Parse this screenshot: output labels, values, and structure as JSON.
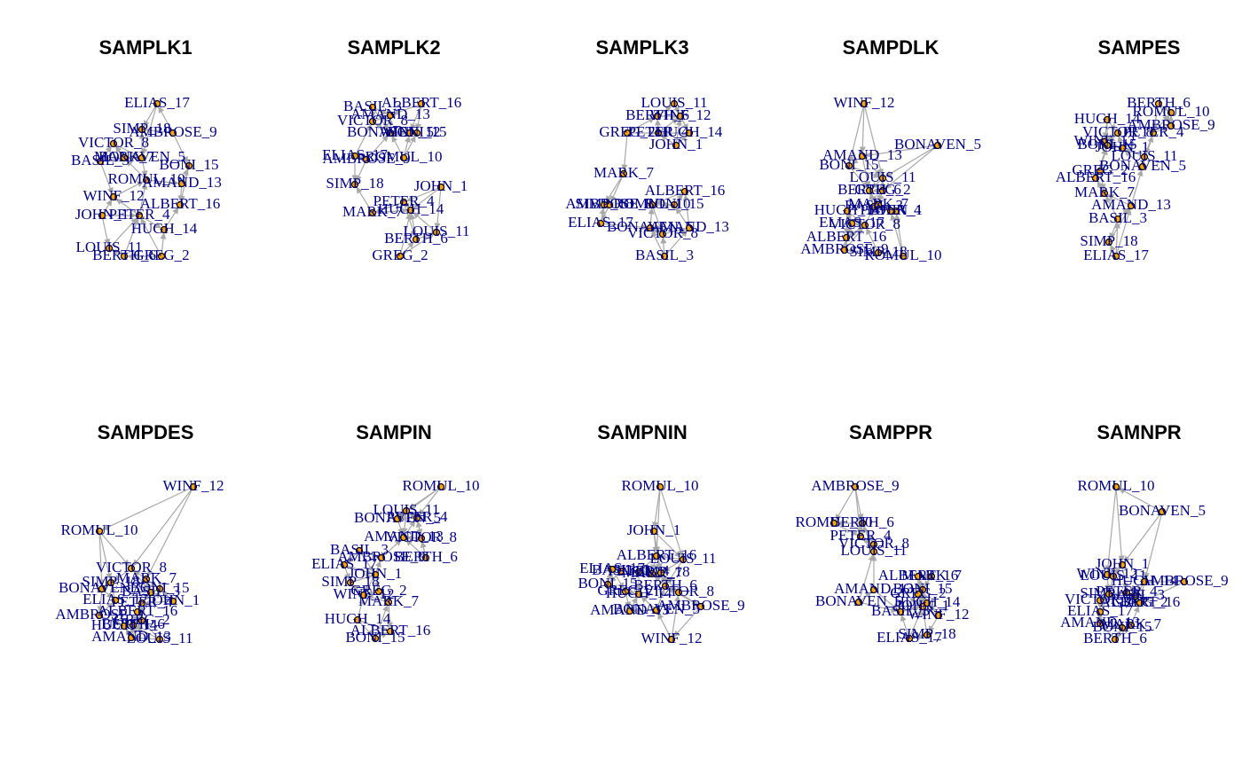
{
  "panels": [
    {
      "title": "SAMPLK1",
      "nodes": [
        "JOHN_1",
        "GREG_2",
        "BASIL_3",
        "PETER_4",
        "BONAVEN_5",
        "BERTH_6",
        "MARK_7",
        "VICTOR_8",
        "AMBROSE_9",
        "ROMUL_10",
        "LOUIS_11",
        "WINF_12",
        "AMAND_13",
        "HUGH_14",
        "BONI_15",
        "ALBERT_16",
        "ELIAS_17",
        "SIMP_18"
      ]
    },
    {
      "title": "SAMPLK2",
      "nodes": [
        "JOHN_1",
        "GREG_2",
        "BASIL_3",
        "PETER_4",
        "BONAVEN_5",
        "BERTH_6",
        "MARK_7",
        "VICTOR_8",
        "AMBROSE_9",
        "ROMUL_10",
        "LOUIS_11",
        "WINF_12",
        "AMAND_13",
        "HUGH_14",
        "BONI_15",
        "ALBERT_16",
        "ELIAS_17",
        "SIMP_18"
      ]
    },
    {
      "title": "SAMPLK3",
      "nodes": [
        "JOHN_1",
        "GREG_2",
        "BASIL_3",
        "PETER_4",
        "BONAVEN_5",
        "BERTH_6",
        "MARK_7",
        "VICTOR_8",
        "AMBROSE_9",
        "ROMUL_10",
        "LOUIS_11",
        "WINF_12",
        "AMAND_13",
        "HUGH_14",
        "BONI_15",
        "ALBERT_16",
        "ELIAS_17",
        "SIMP_18"
      ]
    },
    {
      "title": "SAMPDLK",
      "nodes": [
        "JOHN_1",
        "GREG_2",
        "BASIL_3",
        "PETER_4",
        "BONAVEN_5",
        "BERTH_6",
        "MARK_7",
        "VICTOR_8",
        "AMBROSE_9",
        "ROMUL_10",
        "LOUIS_11",
        "WINF_12",
        "AMAND_13",
        "HUGH_14",
        "BONI_15",
        "ALBERT_16",
        "ELIAS_17",
        "SIMP_18"
      ]
    },
    {
      "title": "SAMPES",
      "nodes": [
        "JOHN_1",
        "GREG_2",
        "BASIL_3",
        "PETER_4",
        "BONAVEN_5",
        "BERTH_6",
        "MARK_7",
        "VICTOR_8",
        "AMBROSE_9",
        "ROMUL_10",
        "LOUIS_11",
        "WINF_12",
        "AMAND_13",
        "HUGH_14",
        "BONI_15",
        "ALBERT_16",
        "ELIAS_17",
        "SIMP_18"
      ]
    },
    {
      "title": "SAMPDES",
      "nodes": [
        "JOHN_1",
        "GREG_2",
        "BASIL_3",
        "PETER_4",
        "BONAVEN_5",
        "BERTH_6",
        "MARK_7",
        "VICTOR_8",
        "AMBROSE_9",
        "ROMUL_10",
        "LOUIS_11",
        "WINF_12",
        "AMAND_13",
        "HUGH_14",
        "BONI_15",
        "ALBERT_16",
        "ELIAS_17",
        "SIMP_18"
      ]
    },
    {
      "title": "SAMPIN",
      "nodes": [
        "JOHN_1",
        "GREG_2",
        "BASIL_3",
        "PETER_4",
        "BONAVEN_5",
        "BERTH_6",
        "MARK_7",
        "VICTOR_8",
        "AMBROSE_9",
        "ROMUL_10",
        "LOUIS_11",
        "WINF_12",
        "AMAND_13",
        "HUGH_14",
        "BONI_15",
        "ALBERT_16",
        "ELIAS_17",
        "SIMP_18"
      ]
    },
    {
      "title": "SAMPNIN",
      "nodes": [
        "JOHN_1",
        "GREG_2",
        "BASIL_3",
        "PETER_4",
        "BONAVEN_5",
        "BERTH_6",
        "MARK_7",
        "VICTOR_8",
        "AMBROSE_9",
        "ROMUL_10",
        "LOUIS_11",
        "WINF_12",
        "AMAND_13",
        "HUGH_14",
        "BONI_15",
        "ALBERT_16",
        "ELIAS_17",
        "SIMP_18"
      ]
    },
    {
      "title": "SAMPPR",
      "nodes": [
        "JOHN_1",
        "GREG_2",
        "BASIL_3",
        "PETER_4",
        "BONAVEN_5",
        "BERTH_6",
        "MARK_7",
        "VICTOR_8",
        "AMBROSE_9",
        "ROMUL_10",
        "LOUIS_11",
        "WINF_12",
        "AMAND_13",
        "HUGH_14",
        "BONI_15",
        "ALBERT_16",
        "ELIAS_17",
        "SIMP_18"
      ]
    },
    {
      "title": "SAMNPR",
      "nodes": [
        "JOHN_1",
        "GREG_2",
        "BASIL_3",
        "PETER_4",
        "BONAVEN_5",
        "BERTH_6",
        "MARK_7",
        "VICTOR_8",
        "AMBROSE_9",
        "ROMUL_10",
        "LOUIS_11",
        "WINF_12",
        "AMAND_13",
        "HUGH_14",
        "BONI_15",
        "ALBERT_16",
        "ELIAS_17",
        "SIMP_18"
      ]
    }
  ]
}
